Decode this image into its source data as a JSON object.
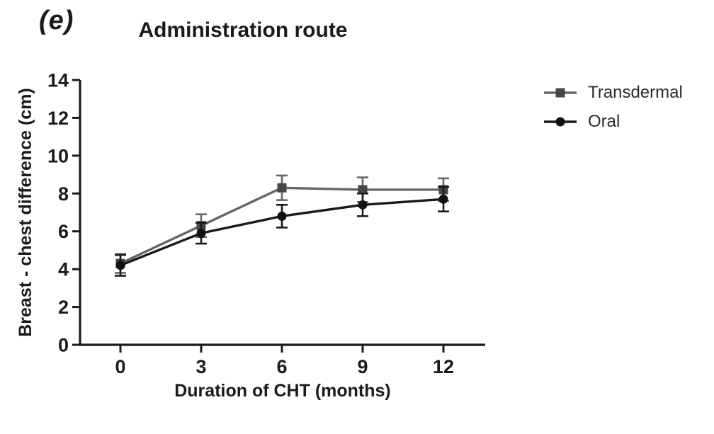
{
  "figure": {
    "panel_label": "(e)",
    "title": "Administration route"
  },
  "chart_data": {
    "type": "line",
    "x": [
      0,
      3,
      6,
      9,
      12
    ],
    "xlabel": "Duration of CHT (months)",
    "ylabel": "Breast - chest difference (cm)",
    "xticks": [
      0,
      3,
      6,
      9,
      12
    ],
    "yticks": [
      0,
      2,
      4,
      6,
      8,
      10,
      12,
      14
    ],
    "xlim": [
      -1.5,
      13.5
    ],
    "ylim": [
      0,
      14
    ],
    "grid": false,
    "legend_position": "right-top",
    "error_bars": "symmetric-sd",
    "axis_color": "#1b1b1b",
    "series": [
      {
        "name": "Transdermal",
        "marker": "square",
        "color": "#666666",
        "marker_color": "#474747",
        "values": [
          4.3,
          6.3,
          8.3,
          8.2,
          8.2
        ],
        "error": [
          0.5,
          0.6,
          0.65,
          0.65,
          0.6
        ]
      },
      {
        "name": "Oral",
        "marker": "circle",
        "color": "#1a1a1a",
        "marker_color": "#111111",
        "values": [
          4.2,
          5.9,
          6.8,
          7.4,
          7.7
        ],
        "error": [
          0.55,
          0.55,
          0.6,
          0.6,
          0.65
        ]
      }
    ]
  }
}
